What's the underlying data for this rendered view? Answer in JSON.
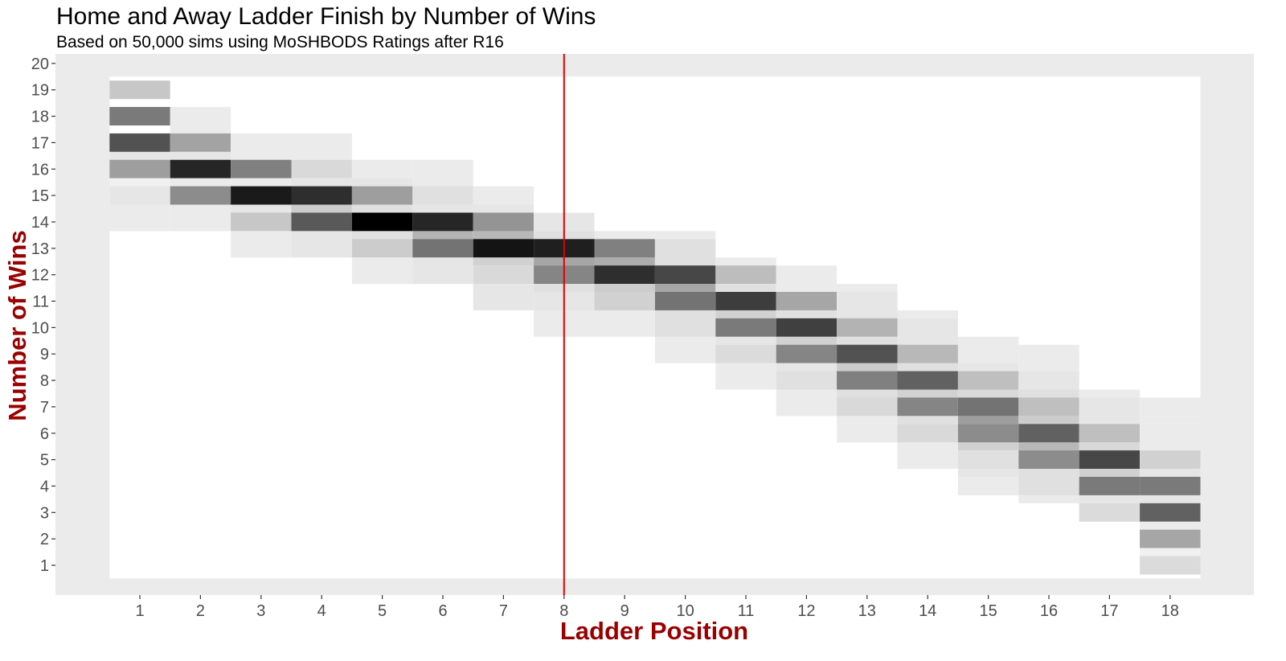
{
  "chart_data": {
    "type": "heatmap",
    "title": "Home and Away Ladder Finish by Number of Wins",
    "subtitle": "Based on 50,000 sims using MoSHBODS Ratings after R16",
    "xlabel": "Ladder Position",
    "ylabel": "Number of Wins",
    "x_ticks": [
      "1",
      "2",
      "3",
      "4",
      "5",
      "6",
      "7",
      "8",
      "9",
      "10",
      "11",
      "12",
      "13",
      "14",
      "15",
      "16",
      "17",
      "18"
    ],
    "y_ticks": [
      "1",
      "2",
      "3",
      "4",
      "5",
      "6",
      "7",
      "8",
      "9",
      "10",
      "11",
      "12",
      "13",
      "14",
      "15",
      "16",
      "17",
      "18",
      "19",
      "20"
    ],
    "xlim": [
      0.5,
      18.5
    ],
    "ylim": [
      0.5,
      19.5
    ],
    "vline_x": 8,
    "vline_color": "#e00000",
    "background_color": "#ebebeb",
    "axis_title_color": "#990000",
    "value_scale": "relative frequency, 0 = white, 1 = black",
    "cells": [
      [
        1,
        19,
        0.22
      ],
      [
        1,
        18,
        0.52
      ],
      [
        1,
        17,
        0.68
      ],
      [
        1,
        16.5,
        0.1
      ],
      [
        1,
        16,
        0.38
      ],
      [
        1,
        15.5,
        0.06
      ],
      [
        1,
        15,
        0.1
      ],
      [
        1,
        14.5,
        0.08
      ],
      [
        1,
        14,
        0.08
      ],
      [
        2,
        18,
        0.08
      ],
      [
        2,
        17.5,
        0.08
      ],
      [
        2,
        17,
        0.36
      ],
      [
        2,
        16.5,
        0.1
      ],
      [
        2,
        16,
        0.85
      ],
      [
        2,
        15.5,
        0.08
      ],
      [
        2,
        15,
        0.45
      ],
      [
        2,
        14.5,
        0.08
      ],
      [
        2,
        14,
        0.08
      ],
      [
        3,
        17,
        0.08
      ],
      [
        3,
        16.5,
        0.08
      ],
      [
        3,
        16,
        0.5
      ],
      [
        3,
        15.5,
        0.08
      ],
      [
        3,
        15,
        0.9
      ],
      [
        3,
        14.5,
        0.1
      ],
      [
        3,
        14,
        0.22
      ],
      [
        3,
        13.5,
        0.08
      ],
      [
        3,
        13,
        0.08
      ],
      [
        4,
        17,
        0.08
      ],
      [
        4,
        16.5,
        0.08
      ],
      [
        4,
        16,
        0.15
      ],
      [
        4,
        15.5,
        0.1
      ],
      [
        4,
        15,
        0.82
      ],
      [
        4,
        14.5,
        0.2
      ],
      [
        4,
        14,
        0.65
      ],
      [
        4,
        13.5,
        0.1
      ],
      [
        4,
        13,
        0.1
      ],
      [
        5,
        16,
        0.08
      ],
      [
        5,
        15.5,
        0.1
      ],
      [
        5,
        15,
        0.38
      ],
      [
        5,
        14.5,
        0.12
      ],
      [
        5,
        14,
        1.0
      ],
      [
        5,
        13.5,
        0.12
      ],
      [
        5,
        13,
        0.2
      ],
      [
        5,
        12.5,
        0.08
      ],
      [
        5,
        12,
        0.08
      ],
      [
        6,
        16,
        0.08
      ],
      [
        6,
        15.5,
        0.08
      ],
      [
        6,
        15,
        0.12
      ],
      [
        6,
        14.5,
        0.1
      ],
      [
        6,
        14,
        0.85
      ],
      [
        6,
        13.5,
        0.3
      ],
      [
        6,
        13,
        0.55
      ],
      [
        6,
        12.5,
        0.1
      ],
      [
        6,
        12,
        0.1
      ],
      [
        7,
        15,
        0.08
      ],
      [
        7,
        14.5,
        0.1
      ],
      [
        7,
        14,
        0.42
      ],
      [
        7,
        13.5,
        0.28
      ],
      [
        7,
        13,
        0.92
      ],
      [
        7,
        12.5,
        0.18
      ],
      [
        7,
        12,
        0.15
      ],
      [
        7,
        11.5,
        0.1
      ],
      [
        7,
        11,
        0.1
      ],
      [
        8,
        14,
        0.1
      ],
      [
        8,
        13.5,
        0.12
      ],
      [
        8,
        13,
        0.88
      ],
      [
        8,
        12.5,
        0.35
      ],
      [
        8,
        12,
        0.48
      ],
      [
        8,
        11.5,
        0.12
      ],
      [
        8,
        11,
        0.1
      ],
      [
        8,
        10.5,
        0.08
      ],
      [
        8,
        10,
        0.08
      ],
      [
        9,
        13.5,
        0.08
      ],
      [
        9,
        13,
        0.5
      ],
      [
        9,
        12.5,
        0.32
      ],
      [
        9,
        12,
        0.82
      ],
      [
        9,
        11.5,
        0.2
      ],
      [
        9,
        11,
        0.18
      ],
      [
        9,
        10.5,
        0.08
      ],
      [
        9,
        10,
        0.08
      ],
      [
        10,
        13.5,
        0.08
      ],
      [
        10,
        13,
        0.12
      ],
      [
        10,
        12.5,
        0.12
      ],
      [
        10,
        12,
        0.72
      ],
      [
        10,
        11.5,
        0.35
      ],
      [
        10,
        11,
        0.55
      ],
      [
        10,
        10.5,
        0.12
      ],
      [
        10,
        10,
        0.12
      ],
      [
        10,
        9.5,
        0.08
      ],
      [
        10,
        9,
        0.08
      ],
      [
        11,
        12.5,
        0.08
      ],
      [
        11,
        12,
        0.26
      ],
      [
        11,
        11.5,
        0.12
      ],
      [
        11,
        11,
        0.76
      ],
      [
        11,
        10.5,
        0.18
      ],
      [
        11,
        10,
        0.52
      ],
      [
        11,
        9.5,
        0.1
      ],
      [
        11,
        9,
        0.14
      ],
      [
        11,
        8.5,
        0.08
      ],
      [
        11,
        8,
        0.08
      ],
      [
        12,
        12,
        0.08
      ],
      [
        12,
        11.5,
        0.08
      ],
      [
        12,
        11,
        0.35
      ],
      [
        12,
        10.5,
        0.12
      ],
      [
        12,
        10,
        0.75
      ],
      [
        12,
        9.5,
        0.18
      ],
      [
        12,
        9,
        0.48
      ],
      [
        12,
        8.5,
        0.1
      ],
      [
        12,
        8,
        0.12
      ],
      [
        12,
        7.5,
        0.08
      ],
      [
        12,
        7,
        0.08
      ],
      [
        13,
        11.5,
        0.08
      ],
      [
        13,
        11,
        0.1
      ],
      [
        13,
        10.5,
        0.1
      ],
      [
        13,
        10,
        0.3
      ],
      [
        13,
        9.5,
        0.12
      ],
      [
        13,
        9,
        0.68
      ],
      [
        13,
        8.5,
        0.2
      ],
      [
        13,
        8,
        0.5
      ],
      [
        13,
        7.5,
        0.12
      ],
      [
        13,
        7,
        0.15
      ],
      [
        13,
        6.5,
        0.08
      ],
      [
        13,
        6,
        0.08
      ],
      [
        14,
        10.5,
        0.08
      ],
      [
        14,
        10,
        0.1
      ],
      [
        14,
        9.5,
        0.1
      ],
      [
        14,
        9,
        0.28
      ],
      [
        14,
        8.5,
        0.12
      ],
      [
        14,
        8,
        0.62
      ],
      [
        14,
        7.5,
        0.18
      ],
      [
        14,
        7,
        0.48
      ],
      [
        14,
        6.5,
        0.12
      ],
      [
        14,
        6,
        0.15
      ],
      [
        14,
        5.5,
        0.08
      ],
      [
        14,
        5,
        0.08
      ],
      [
        15,
        9.5,
        0.08
      ],
      [
        15,
        9,
        0.08
      ],
      [
        15,
        8.5,
        0.1
      ],
      [
        15,
        8,
        0.25
      ],
      [
        15,
        7.5,
        0.15
      ],
      [
        15,
        7,
        0.55
      ],
      [
        15,
        6.5,
        0.38
      ],
      [
        15,
        6,
        0.45
      ],
      [
        15,
        5.5,
        0.18
      ],
      [
        15,
        5,
        0.12
      ],
      [
        15,
        4.5,
        0.1
      ],
      [
        15,
        4,
        0.08
      ],
      [
        16,
        9,
        0.08
      ],
      [
        16,
        8.5,
        0.08
      ],
      [
        16,
        8,
        0.1
      ],
      [
        16,
        7.5,
        0.12
      ],
      [
        16,
        7,
        0.25
      ],
      [
        16,
        6.5,
        0.2
      ],
      [
        16,
        6,
        0.62
      ],
      [
        16,
        5.5,
        0.28
      ],
      [
        16,
        5,
        0.45
      ],
      [
        16,
        4.5,
        0.12
      ],
      [
        16,
        4,
        0.12
      ],
      [
        16,
        3.5,
        0.08
      ],
      [
        17,
        7.5,
        0.08
      ],
      [
        17,
        7,
        0.1
      ],
      [
        17,
        6.5,
        0.1
      ],
      [
        17,
        6,
        0.25
      ],
      [
        17,
        5.5,
        0.15
      ],
      [
        17,
        5,
        0.72
      ],
      [
        17,
        4.5,
        0.18
      ],
      [
        17,
        4,
        0.52
      ],
      [
        17,
        3.5,
        0.1
      ],
      [
        17,
        3,
        0.14
      ],
      [
        18,
        7,
        0.08
      ],
      [
        18,
        6.5,
        0.08
      ],
      [
        18,
        6,
        0.08
      ],
      [
        18,
        5.5,
        0.08
      ],
      [
        18,
        5,
        0.18
      ],
      [
        18,
        4.5,
        0.1
      ],
      [
        18,
        4,
        0.52
      ],
      [
        18,
        3.5,
        0.1
      ],
      [
        18,
        3,
        0.62
      ],
      [
        18,
        2.5,
        0.08
      ],
      [
        18,
        2,
        0.35
      ],
      [
        18,
        1.5,
        0.06
      ],
      [
        18,
        1,
        0.14
      ]
    ]
  }
}
